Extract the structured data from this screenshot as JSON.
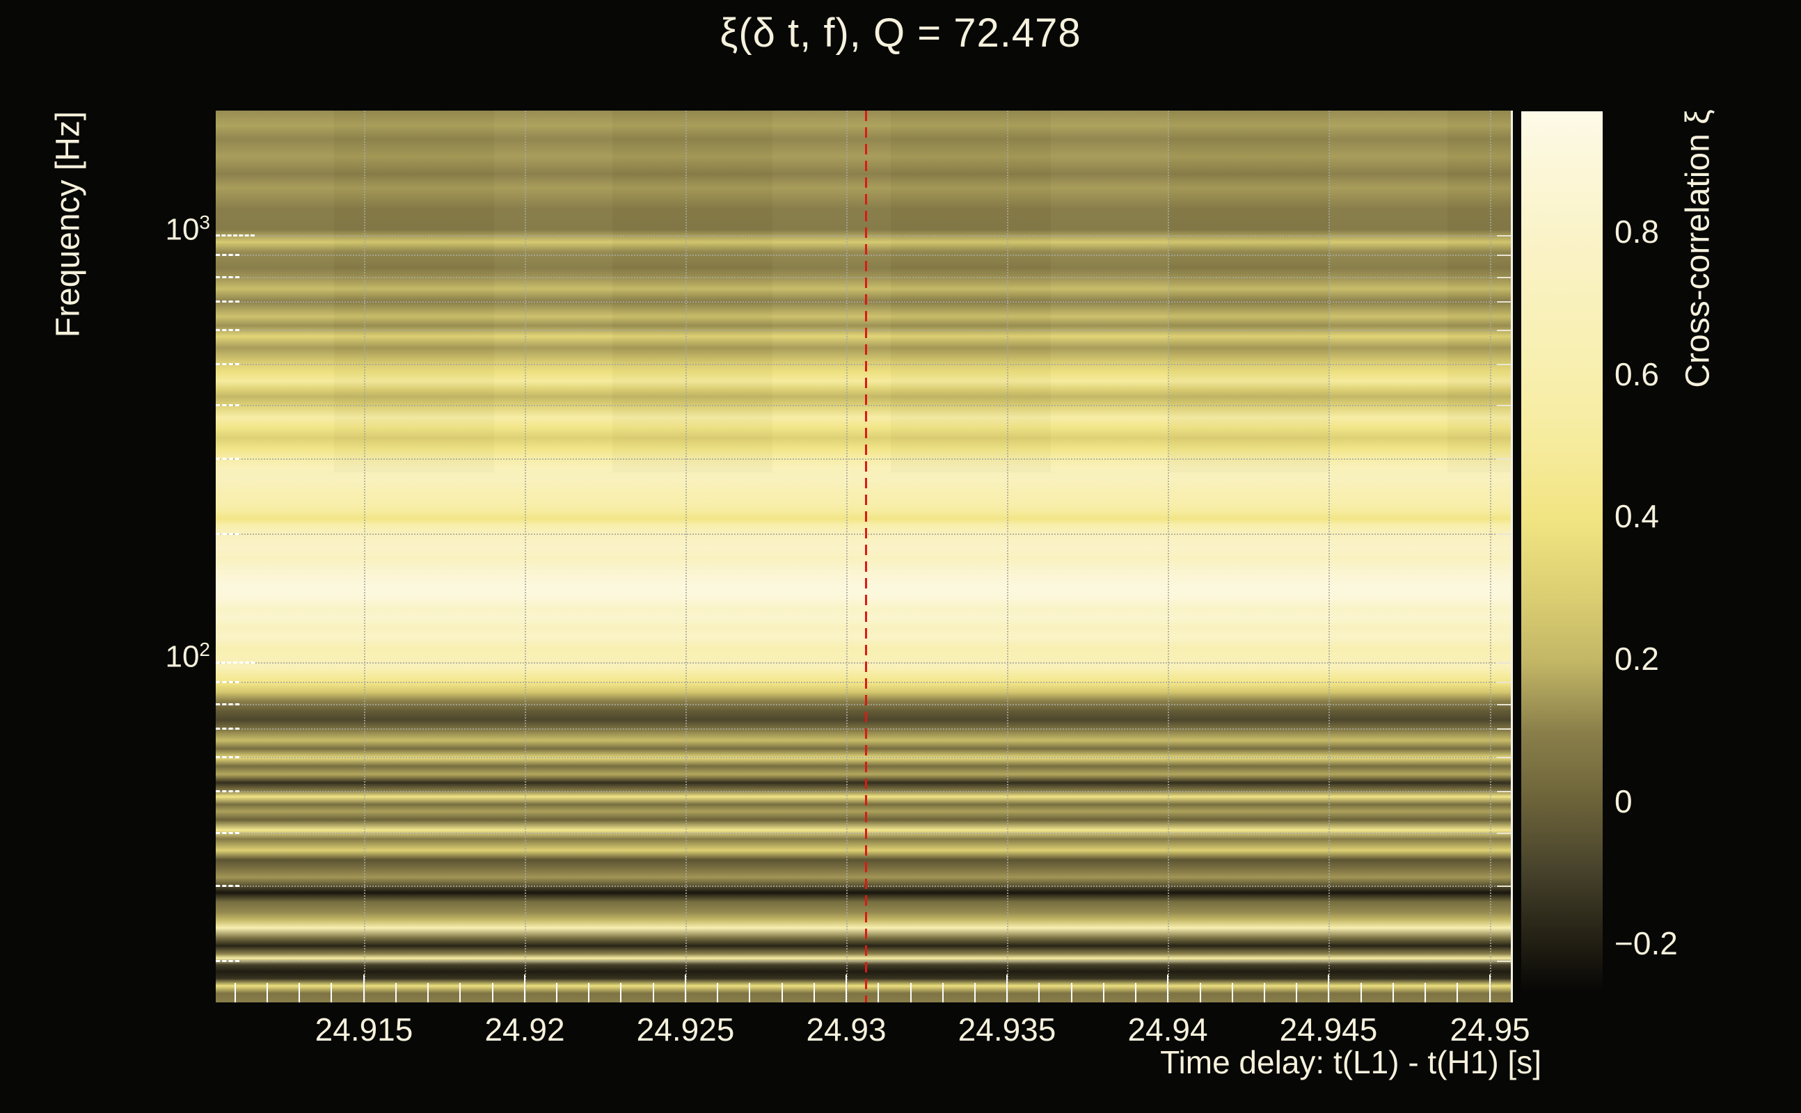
{
  "title": "ξ(δ t, f), Q = 72.478",
  "colors": {
    "background": "#070706",
    "text": "#f6f1dc",
    "grid": "#a8a89e",
    "tick": "#ffffff",
    "marker_red": "#db1b15",
    "right_spine": "#f2efe3"
  },
  "colorbar": {
    "label": "Cross-correlation ξ",
    "vmin": -0.265,
    "vmax": 0.972,
    "tick_values": [
      0.8,
      0.6,
      0.4,
      0.2,
      0,
      -0.2
    ],
    "tick_labels": [
      "0.8",
      "0.6",
      "0.4",
      "0.2",
      "0",
      "−0.2"
    ],
    "colormap": [
      [
        -0.27,
        "#050504"
      ],
      [
        -0.2,
        "#201d12"
      ],
      [
        -0.1,
        "#45402a"
      ],
      [
        0.0,
        "#6b6239"
      ],
      [
        0.1,
        "#8a7f4a"
      ],
      [
        0.2,
        "#c3b766"
      ],
      [
        0.3,
        "#ddd073"
      ],
      [
        0.4,
        "#f1e482"
      ],
      [
        0.5,
        "#f6eb9c"
      ],
      [
        0.6,
        "#f8efae"
      ],
      [
        0.7,
        "#f9f1bb"
      ],
      [
        0.8,
        "#faf3c9"
      ],
      [
        0.9,
        "#fcf7d9"
      ],
      [
        0.972,
        "#fdfae8"
      ]
    ]
  },
  "chart_data": {
    "type": "heatmap",
    "title": "ξ(δ t, f), Q = 72.478",
    "xlabel": "Time delay: t(L1) - t(H1) [s]",
    "ylabel": "Frequency [Hz]",
    "xlim": [
      24.9104,
      24.9507
    ],
    "ylim_hz": [
      16,
      1957
    ],
    "yscale": "log",
    "grid": true,
    "x_major_ticks": [
      24.915,
      24.92,
      24.925,
      24.93,
      24.935,
      24.94,
      24.945,
      24.95
    ],
    "x_tick_labels": [
      "24.915",
      "24.92",
      "24.925",
      "24.93",
      "24.935",
      "24.94",
      "24.945",
      "24.95"
    ],
    "x_minor_step": 0.001,
    "y_major_ticks": [
      {
        "base": "10",
        "exp": "3",
        "hz": 1000
      },
      {
        "base": "10",
        "exp": "2",
        "hz": 100
      }
    ],
    "y_minor_gridlines_hz": [
      900,
      800,
      700,
      600,
      500,
      400,
      300,
      200,
      90,
      80,
      70,
      60,
      50,
      40,
      30,
      20
    ],
    "marker_line_time": 24.9306,
    "bands": [
      [
        1957,
        0.12
      ],
      [
        1807,
        0.16
      ],
      [
        1678,
        0.11
      ],
      [
        1528,
        0.15
      ],
      [
        1391,
        0.1
      ],
      [
        1290,
        0.15
      ],
      [
        1153,
        0.09
      ],
      [
        1030,
        0.08
      ],
      [
        963,
        0.27
      ],
      [
        914,
        0.12
      ],
      [
        838,
        0.09
      ],
      [
        792,
        0.14
      ],
      [
        749,
        0.22
      ],
      [
        700,
        0.1
      ],
      [
        645,
        0.24
      ],
      [
        614,
        0.13
      ],
      [
        580,
        0.32
      ],
      [
        545,
        0.15
      ],
      [
        505,
        0.28
      ],
      [
        478,
        0.38
      ],
      [
        455,
        0.5
      ],
      [
        435,
        0.3
      ],
      [
        419,
        0.2
      ],
      [
        400,
        0.3
      ],
      [
        374,
        0.55
      ],
      [
        354,
        0.42
      ],
      [
        335,
        0.3
      ],
      [
        316,
        0.42
      ],
      [
        301,
        0.55
      ],
      [
        286,
        0.68
      ],
      [
        267,
        0.72
      ],
      [
        250,
        0.62
      ],
      [
        237,
        0.6
      ],
      [
        226,
        0.52
      ],
      [
        217,
        0.42
      ],
      [
        209,
        0.6
      ],
      [
        198,
        0.72
      ],
      [
        184,
        0.8
      ],
      [
        176,
        0.72
      ],
      [
        167,
        0.82
      ],
      [
        158,
        0.88
      ],
      [
        149,
        0.93
      ],
      [
        141,
        0.9
      ],
      [
        133,
        0.78
      ],
      [
        127,
        0.84
      ],
      [
        121,
        0.73
      ],
      [
        114,
        0.78
      ],
      [
        108,
        0.62
      ],
      [
        103,
        0.66
      ],
      [
        97.8,
        0.7
      ],
      [
        93.5,
        0.52
      ],
      [
        89.3,
        0.42
      ],
      [
        85.1,
        0.26
      ],
      [
        81.1,
        0.1
      ],
      [
        76.9,
        -0.02
      ],
      [
        73.3,
        -0.08
      ],
      [
        69.8,
        0.06
      ],
      [
        65.7,
        0.22
      ],
      [
        62.8,
        0.04
      ],
      [
        59.8,
        0.35
      ],
      [
        57.2,
        0.04
      ],
      [
        54.7,
        0.17
      ],
      [
        52.3,
        -0.15
      ],
      [
        50.0,
        0.1
      ],
      [
        48.5,
        0.42
      ],
      [
        46.5,
        0.04
      ],
      [
        44.8,
        0.16
      ],
      [
        42.8,
        0.0
      ],
      [
        40.5,
        0.45
      ],
      [
        38.6,
        0.08
      ],
      [
        36.3,
        0.3
      ],
      [
        34.5,
        -0.04
      ],
      [
        32.8,
        0.06
      ],
      [
        31.4,
        0.14
      ],
      [
        30.2,
        -0.02
      ],
      [
        28.9,
        -0.22
      ],
      [
        27.5,
        0.04
      ],
      [
        26.0,
        0.12
      ],
      [
        25.0,
        0.2
      ],
      [
        23.9,
        0.62
      ],
      [
        22.6,
        0.04
      ],
      [
        21.7,
        -0.18
      ],
      [
        20.8,
        0.1
      ],
      [
        20.3,
        0.55
      ],
      [
        19.6,
        -0.1
      ],
      [
        18.9,
        -0.2
      ],
      [
        18.2,
        -0.14
      ],
      [
        17.5,
        0.38
      ],
      [
        16.8,
        0.06
      ],
      [
        16.0,
        0.1
      ]
    ]
  }
}
